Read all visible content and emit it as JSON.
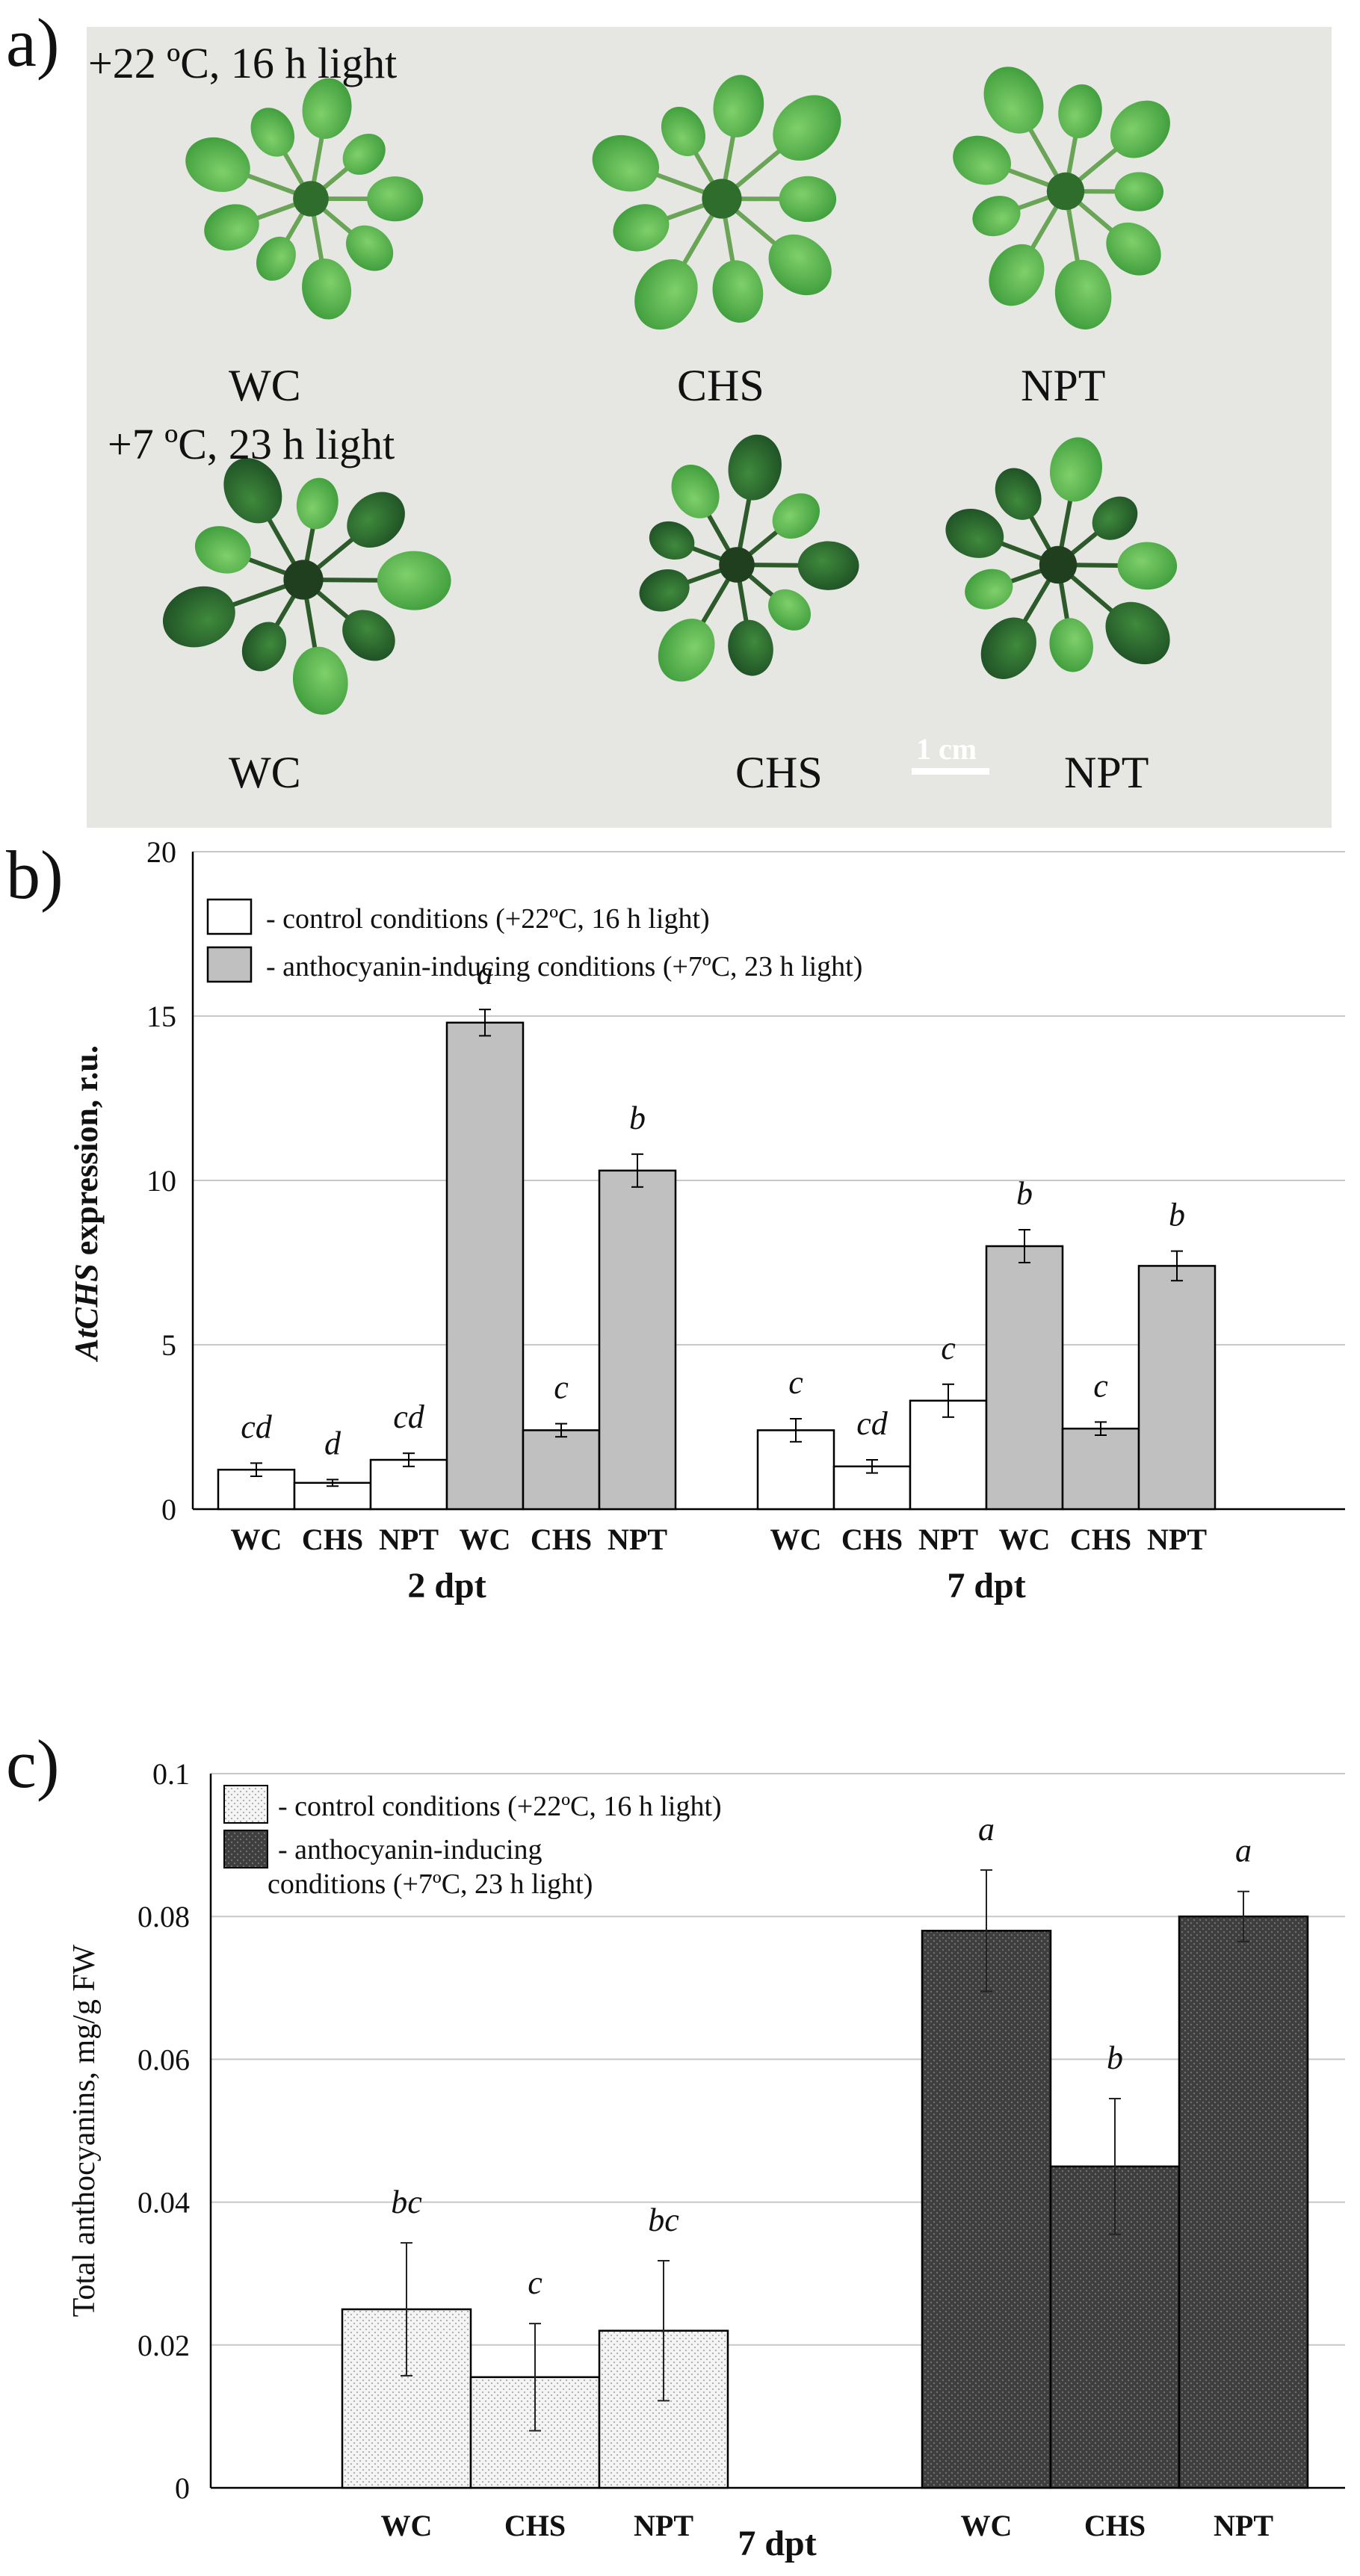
{
  "panels": {
    "a": "a)",
    "b": "b)",
    "c": "c)"
  },
  "photo": {
    "top_condition": "+22 ºC, 16 h light",
    "bottom_condition": "+7 ºC, 23 h light",
    "top_row_labels": [
      "WC",
      "CHS",
      "NPT"
    ],
    "bottom_row_labels": [
      "WC",
      "CHS",
      "NPT"
    ],
    "scale_bar": "1 cm",
    "colors": {
      "background": "#e8e8e6",
      "leaf_light": "#58b44a",
      "leaf_dark": "#1f5a2a",
      "leaf_mid": "#3c8f3b"
    }
  },
  "chart_data": [
    {
      "type": "bar",
      "ylabel_italic": "AtCHS",
      "ylabel_rest": " expression, r.u.",
      "ylim": [
        0,
        20
      ],
      "yticks": [
        "0",
        "5",
        "10",
        "15",
        "20"
      ],
      "grid": true,
      "legend": {
        "placement": "top-left",
        "entries": [
          "- control conditions (+22ºC, 16 h light)",
          "- anthocyanin-inducing conditions (+7ºC, 23 h light)"
        ]
      },
      "groups": [
        {
          "label": "2 dpt",
          "categories": [
            "WC",
            "CHS",
            "NPT",
            "WC",
            "CHS",
            "NPT"
          ],
          "values": [
            1.2,
            0.8,
            1.5,
            14.8,
            2.4,
            10.3
          ],
          "errors": [
            0.2,
            0.1,
            0.2,
            0.4,
            0.2,
            0.5
          ],
          "letters": [
            "cd",
            "d",
            "cd",
            "a",
            "c",
            "b"
          ],
          "condition": [
            "control",
            "control",
            "control",
            "induced",
            "induced",
            "induced"
          ]
        },
        {
          "label": "7 dpt",
          "categories": [
            "WC",
            "CHS",
            "NPT",
            "WC",
            "CHS",
            "NPT"
          ],
          "values": [
            2.4,
            1.3,
            3.3,
            8.0,
            2.45,
            7.4
          ],
          "errors": [
            0.35,
            0.2,
            0.5,
            0.5,
            0.2,
            0.45
          ],
          "letters": [
            "c",
            "cd",
            "c",
            "b",
            "c",
            "b"
          ],
          "condition": [
            "control",
            "control",
            "control",
            "induced",
            "induced",
            "induced"
          ]
        }
      ],
      "colors": {
        "control": "#ffffff",
        "induced": "#c0c0c0",
        "stroke": "#000000",
        "grid": "#c8c8c8"
      }
    },
    {
      "type": "bar",
      "ylabel": "Total anthocyanins,  mg/g FW",
      "ylim": [
        0,
        0.1
      ],
      "yticks": [
        "0",
        "0.02",
        "0.04",
        "0.06",
        "0.08",
        "0.1"
      ],
      "grid": true,
      "xlabel": "7 dpt",
      "legend": {
        "placement": "top-left",
        "entries": [
          "- control conditions (+22ºC, 16 h light)",
          "- anthocyanin-inducing",
          "conditions (+7ºC, 23 h light)"
        ]
      },
      "categories": [
        "WC",
        "CHS",
        "NPT",
        "WC",
        "CHS",
        "NPT"
      ],
      "values": [
        0.025,
        0.0155,
        0.022,
        0.078,
        0.045,
        0.08
      ],
      "errors": [
        0.0093,
        0.0075,
        0.0098,
        0.0085,
        0.0095,
        0.0035
      ],
      "letters": [
        "bc",
        "c",
        "bc",
        "a",
        "b",
        "a"
      ],
      "condition": [
        "control",
        "control",
        "control",
        "induced",
        "induced",
        "induced"
      ],
      "colors": {
        "control": "#f4f4f4",
        "induced": "#3e3e3e",
        "stroke": "#000000",
        "grid": "#c8c8c8"
      }
    }
  ]
}
